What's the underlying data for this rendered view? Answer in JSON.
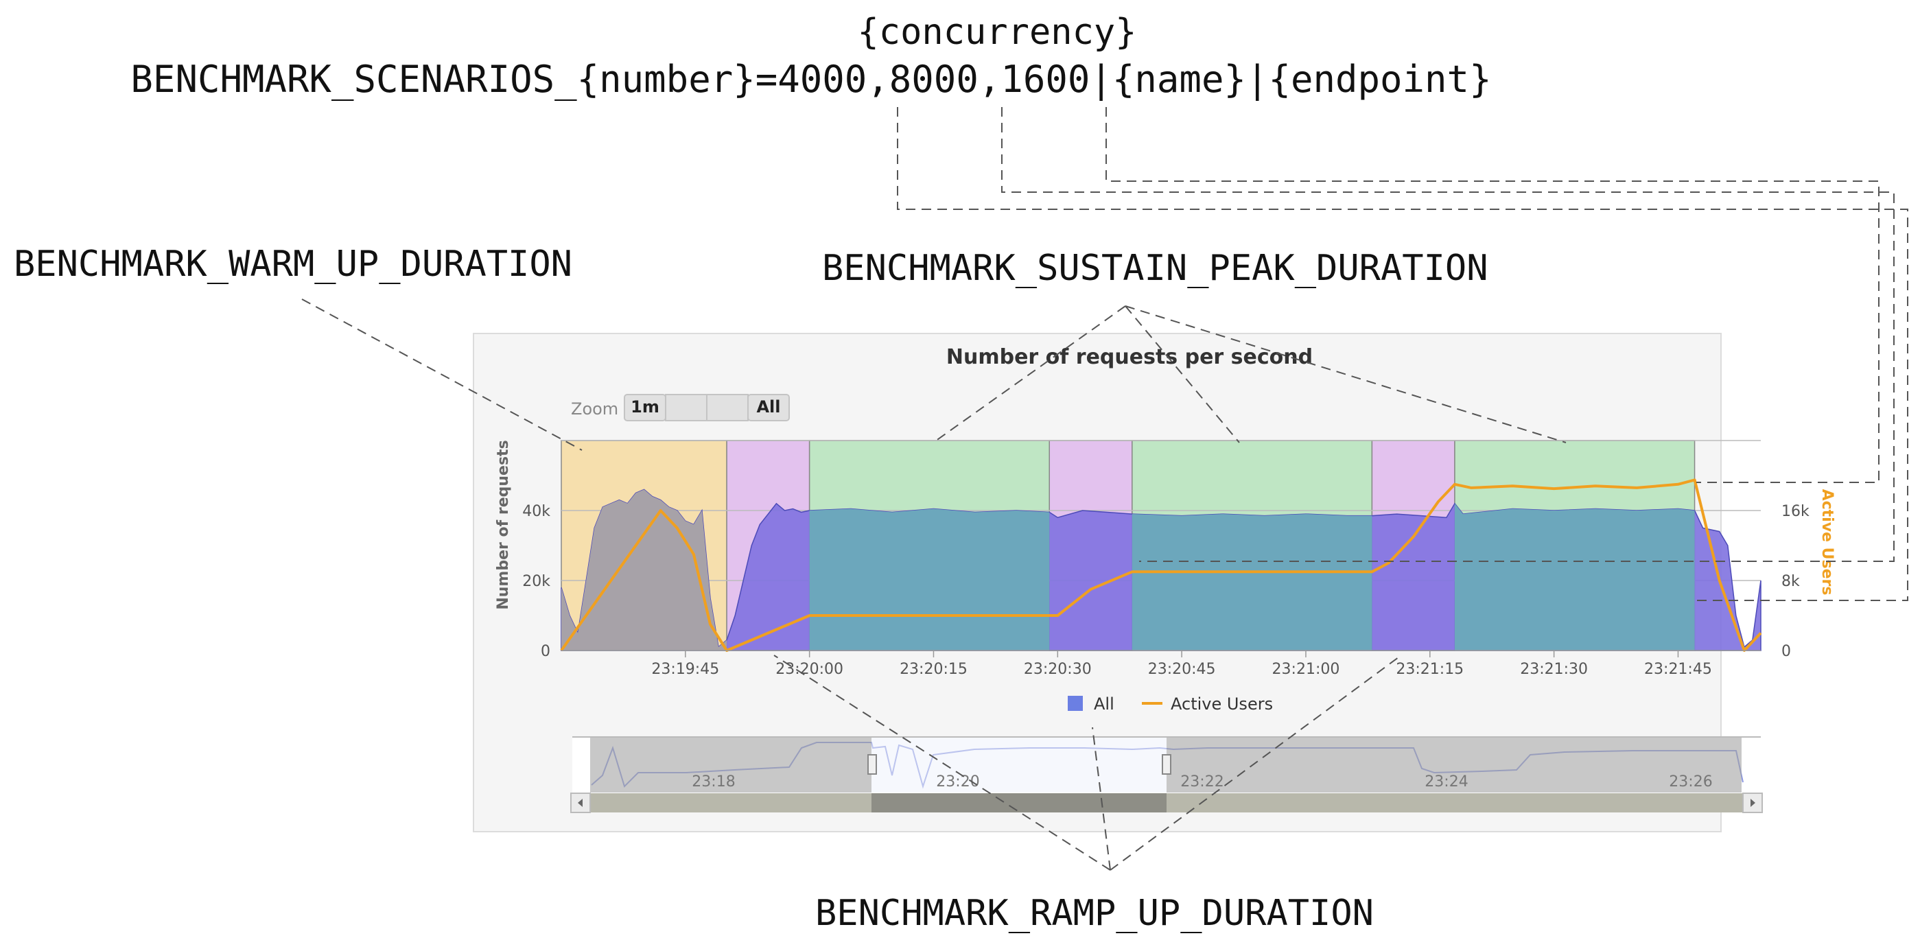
{
  "header": {
    "concurrency_label": "{concurrency}",
    "scenarios_line": "BENCHMARK_SCENARIOS_{number}=4000,8000,1600|{name}|{endpoint}"
  },
  "callouts": {
    "warm_up": "BENCHMARK_WARM_UP_DURATION",
    "sustain_peak": "BENCHMARK_SUSTAIN_PEAK_DURATION",
    "ramp_up": "BENCHMARK_RAMP_UP_DURATION"
  },
  "colors": {
    "warm_up_band": "#f6dfad",
    "ramp_band": "#e3c2ee",
    "sustain_band": "#bfe6c4",
    "requests_area": "#7f72e0",
    "active_users_line": "#f0a020",
    "warm_area": "#a7a2a8",
    "sustain_area": "#6ca7bc"
  },
  "chart_panel": {
    "title": "Number of requests per second",
    "zoom_label": "Zoom",
    "zoom_buttons": [
      "1m",
      "",
      "",
      "All"
    ],
    "legend": [
      {
        "name": "All",
        "color": "#6b7fe3",
        "icon": "square"
      },
      {
        "name": "Active Users",
        "color": "#f0a020",
        "icon": "line"
      }
    ],
    "navigator": {
      "tick_labels": [
        "23:18",
        "23:20",
        "23:22",
        "23:24",
        "23:26"
      ]
    }
  },
  "chart_data": {
    "type": "area",
    "title": "Number of requests per second",
    "ylabel": "Number of requests",
    "y2label": "Active Users",
    "ylim": [
      0,
      60000
    ],
    "y2lim": [
      0,
      24000
    ],
    "yticks": [
      "0",
      "20k",
      "40k"
    ],
    "y2ticks": [
      "0",
      "8k",
      "16k"
    ],
    "xticks": [
      "23:19:45",
      "23:20:00",
      "23:20:15",
      "23:20:30",
      "23:20:45",
      "23:21:00",
      "23:21:15",
      "23:21:30",
      "23:21:45"
    ],
    "phases": [
      {
        "type": "warm_up",
        "start": "23:19:30",
        "end": "23:19:50"
      },
      {
        "type": "ramp_up",
        "start": "23:19:50",
        "end": "23:20:00"
      },
      {
        "type": "sustain",
        "start": "23:20:00",
        "end": "23:20:29"
      },
      {
        "type": "ramp_up",
        "start": "23:20:29",
        "end": "23:20:39"
      },
      {
        "type": "sustain",
        "start": "23:20:39",
        "end": "23:21:08"
      },
      {
        "type": "ramp_up",
        "start": "23:21:08",
        "end": "23:21:18"
      },
      {
        "type": "sustain",
        "start": "23:21:18",
        "end": "23:21:47"
      }
    ],
    "series": [
      {
        "name": "All",
        "axis": "left",
        "points": [
          [
            "23:19:30",
            18000
          ],
          [
            "23:19:31",
            10000
          ],
          [
            "23:19:32",
            5000
          ],
          [
            "23:19:33",
            20000
          ],
          [
            "23:19:34",
            35000
          ],
          [
            "23:19:35",
            41000
          ],
          [
            "23:19:36",
            42000
          ],
          [
            "23:19:37",
            43000
          ],
          [
            "23:19:38",
            42000
          ],
          [
            "23:19:39",
            45000
          ],
          [
            "23:19:40",
            46000
          ],
          [
            "23:19:41",
            44000
          ],
          [
            "23:19:42",
            43000
          ],
          [
            "23:19:43",
            41000
          ],
          [
            "23:19:44",
            40000
          ],
          [
            "23:19:45",
            37000
          ],
          [
            "23:19:46",
            36000
          ],
          [
            "23:19:47",
            40000
          ],
          [
            "23:19:48",
            15000
          ],
          [
            "23:19:49",
            1000
          ],
          [
            "23:19:50",
            3000
          ],
          [
            "23:19:51",
            10000
          ],
          [
            "23:19:52",
            20000
          ],
          [
            "23:19:53",
            30000
          ],
          [
            "23:19:54",
            36000
          ],
          [
            "23:19:55",
            39000
          ],
          [
            "23:19:56",
            42000
          ],
          [
            "23:19:57",
            40000
          ],
          [
            "23:19:58",
            40500
          ],
          [
            "23:19:59",
            39500
          ],
          [
            "23:20:00",
            40000
          ],
          [
            "23:20:05",
            40500
          ],
          [
            "23:20:10",
            39500
          ],
          [
            "23:20:15",
            40500
          ],
          [
            "23:20:20",
            39500
          ],
          [
            "23:20:25",
            40000
          ],
          [
            "23:20:29",
            39500
          ],
          [
            "23:20:30",
            38000
          ],
          [
            "23:20:33",
            40000
          ],
          [
            "23:20:36",
            39500
          ],
          [
            "23:20:39",
            39000
          ],
          [
            "23:20:45",
            38500
          ],
          [
            "23:20:50",
            39000
          ],
          [
            "23:20:55",
            38500
          ],
          [
            "23:21:00",
            39000
          ],
          [
            "23:21:05",
            38500
          ],
          [
            "23:21:08",
            38500
          ],
          [
            "23:21:11",
            39000
          ],
          [
            "23:21:14",
            38500
          ],
          [
            "23:21:17",
            38000
          ],
          [
            "23:21:18",
            42000
          ],
          [
            "23:21:19",
            39000
          ],
          [
            "23:21:25",
            40500
          ],
          [
            "23:21:30",
            40000
          ],
          [
            "23:21:35",
            40500
          ],
          [
            "23:21:40",
            40000
          ],
          [
            "23:21:45",
            40500
          ],
          [
            "23:21:47",
            40000
          ],
          [
            "23:21:48",
            35000
          ],
          [
            "23:21:50",
            34000
          ],
          [
            "23:21:51",
            30000
          ],
          [
            "23:21:52",
            10000
          ],
          [
            "23:21:53",
            1000
          ],
          [
            "23:21:54",
            3000
          ],
          [
            "23:21:55",
            20000
          ]
        ]
      },
      {
        "name": "Active Users",
        "axis": "right",
        "points": [
          [
            "23:19:30",
            0
          ],
          [
            "23:19:36",
            8000
          ],
          [
            "23:19:42",
            16000
          ],
          [
            "23:19:44",
            14000
          ],
          [
            "23:19:46",
            11000
          ],
          [
            "23:19:48",
            3000
          ],
          [
            "23:19:50",
            0
          ],
          [
            "23:19:55",
            2000
          ],
          [
            "23:20:00",
            4000
          ],
          [
            "23:20:05",
            4000
          ],
          [
            "23:20:29",
            4000
          ],
          [
            "23:20:30",
            4000
          ],
          [
            "23:20:34",
            7000
          ],
          [
            "23:20:39",
            9000
          ],
          [
            "23:20:45",
            9000
          ],
          [
            "23:21:08",
            9000
          ],
          [
            "23:21:10",
            10000
          ],
          [
            "23:21:13",
            13000
          ],
          [
            "23:21:16",
            17000
          ],
          [
            "23:21:18",
            19000
          ],
          [
            "23:21:20",
            18600
          ],
          [
            "23:21:25",
            18800
          ],
          [
            "23:21:30",
            18500
          ],
          [
            "23:21:35",
            18800
          ],
          [
            "23:21:40",
            18600
          ],
          [
            "23:21:45",
            19000
          ],
          [
            "23:21:47",
            19500
          ],
          [
            "23:21:50",
            8000
          ],
          [
            "23:21:53",
            0
          ],
          [
            "23:21:55",
            2000
          ]
        ]
      }
    ]
  }
}
